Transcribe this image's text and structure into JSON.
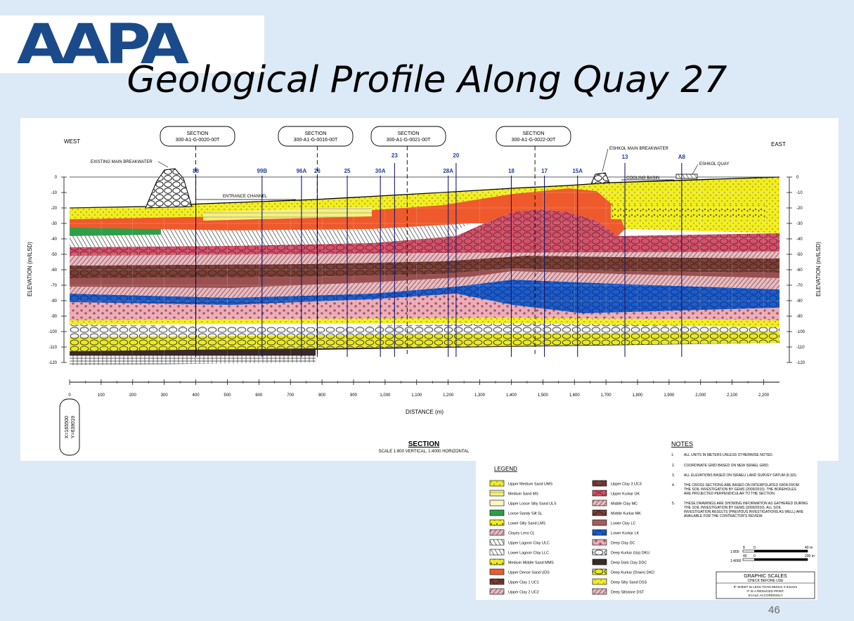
{
  "logo": {
    "text": "AAPA"
  },
  "slide": {
    "title": "Geological Profile Along Quay 27",
    "page_number": "46"
  },
  "profile": {
    "west_label": "WEST",
    "east_label": "EAST",
    "y_axis_label": "ELEVATION (m/ILSD)",
    "x_axis_label": "DISTANCE (m)",
    "elevation_ticks": [
      "0",
      "-10",
      "-20",
      "-30",
      "-40",
      "-50",
      "-60",
      "-70",
      "-80",
      "-90",
      "-100",
      "-110",
      "-120"
    ],
    "distance_ticks": [
      "0",
      "100",
      "200",
      "300",
      "400",
      "500",
      "600",
      "700",
      "800",
      "900",
      "1,000",
      "1,100",
      "1,200",
      "1,300",
      "1,400",
      "1,500",
      "1,600",
      "1,700",
      "1,800",
      "1,900",
      "2,000",
      "2,100",
      "2,200"
    ],
    "sections": [
      {
        "line1": "SECTION",
        "line2": "300-A1-G-0020-00T"
      },
      {
        "line1": "SECTION",
        "line2": "300-A1-G-0016-00T"
      },
      {
        "line1": "SECTION",
        "line2": "300-A1-G-0021-00T"
      },
      {
        "line1": "SECTION",
        "line2": "300-A1-G-0022-00T"
      }
    ],
    "boreholes": [
      {
        "label": "88",
        "d": 400
      },
      {
        "label": "99B",
        "d": 610
      },
      {
        "label": "96A",
        "d": 735
      },
      {
        "label": "26",
        "d": 785
      },
      {
        "label": "25",
        "d": 880
      },
      {
        "label": "30A",
        "d": 985
      },
      {
        "label": "23",
        "d": 1030
      },
      {
        "label": "28A",
        "d": 1200
      },
      {
        "label": "20",
        "d": 1225
      },
      {
        "label": "18",
        "d": 1400
      },
      {
        "label": "17",
        "d": 1505
      },
      {
        "label": "15A",
        "d": 1610
      },
      {
        "label": "13",
        "d": 1760
      },
      {
        "label": "A8",
        "d": 1940
      }
    ],
    "annotations": {
      "existing_breakwater": "EXISTING MAIN BREAKWATER",
      "eshkol_breakwater": "ESHKOL MAIN BREAKWATER",
      "eshkol_quay": "ESHKOL QUAY",
      "entrance_channel": "ENTRANCE CHANNEL",
      "cooling_basin": "COOLING BASIN"
    },
    "coord_x": "X=165500",
    "coord_y": "Y=639019",
    "section_title": "SECTION",
    "section_scale": "SCALE 1:800 VERTICAL, 1:4000 HORIZONTAL"
  },
  "notes": {
    "title": "NOTES",
    "items": [
      {
        "num": "1.",
        "lines": [
          "ALL UNITS IN METERS UNLESS OTHERWISE NOTED."
        ]
      },
      {
        "num": "2.",
        "lines": [
          "COORDINATE GRID BASED ON NEW ISRAEL GRID."
        ]
      },
      {
        "num": "3.",
        "lines": [
          "ALL ELEVATIONS BASED ON ISRAELI LAND SURVEY DATUM (ILSD)."
        ]
      },
      {
        "num": "4.",
        "lines": [
          "THE CROSS SECTIONS ARE BASED ON INTERPOLATED DATA FROM",
          "THE SOIL INVESTIGATION BY GEMS (2009/2010). THE BOREHOLES",
          "ARE PROJECTED PERPENDICULAR TO THE SECTION."
        ]
      },
      {
        "num": "5.",
        "lines": [
          "THESE DRAWINGS ARE SHOWING INFORMATION AS GATHERED DURING",
          "THE SOIL INVESTIGATION BY GEMS (2009/2010). ALL SOIL",
          "INVESTIGATION RESULTS (PREVIOUS INVESTIGATIONS AS WELL) ARE",
          "AVAILABLE FOR THE CONTRACTOR'S REVIEW."
        ]
      }
    ]
  },
  "legend": {
    "title": "LEGEND",
    "items": [
      {
        "label": "Upper Medium Sand UMS",
        "color": "#f2ee1e"
      },
      {
        "label": "Medium Sand MS",
        "color": "#f2ee1e"
      },
      {
        "label": "Upper Loose Silty Sand ULS",
        "color": "#fbf6c4"
      },
      {
        "label": "Loose Sandy Silt SL",
        "color": "#2e9e4a"
      },
      {
        "label": "Lower Silty Sand LMS",
        "color": "#e7e52a"
      },
      {
        "label": "Clayey Lens CL",
        "color": "#e8b9c0"
      },
      {
        "label": "Upper Lagoon Clay ULC",
        "color": "#777777"
      },
      {
        "label": "Lower Lagoon Clay LLC",
        "color": "#555555"
      },
      {
        "label": "Medium Middle Sand MMS",
        "color": "#f2ee1e"
      },
      {
        "label": "Upper Dense Sand UDS",
        "color": "#ef5a2c"
      },
      {
        "label": "Upper Clay 1 UC1",
        "color": "#9c6a6a"
      },
      {
        "label": "Upper Clay 2 UC2",
        "color": "#b07c7c"
      },
      {
        "label": "Upper Clay 3 UC3",
        "color": "#7a3f36"
      },
      {
        "label": "Upper Kurkar UK",
        "color": "#d4516a"
      },
      {
        "label": "Middle Clay MC",
        "color": "#c9a5a5"
      },
      {
        "label": "Middle Kurkar MK",
        "color": "#8c3a3a"
      },
      {
        "label": "Lower Clay LC",
        "color": "#a65c5c"
      },
      {
        "label": "Lower Kurkar LK",
        "color": "#1d5ccc"
      },
      {
        "label": "Deep Clay DC",
        "color": "#f1a9b5"
      },
      {
        "label": "Deep Kurkar (Up) DKU",
        "color": "#eeeeee"
      },
      {
        "label": "Deep Dark Clay DDC",
        "color": "#3a2a2a"
      },
      {
        "label": "Deep Kurkar (Down) DKD",
        "color": "#eaea20"
      },
      {
        "label": "Deep Silty Sand DSS",
        "color": "#fbf6c4"
      },
      {
        "label": "Deep Siltstone DST",
        "color": "#6d3d3d"
      }
    ]
  },
  "scales": {
    "v_scale": "1:800",
    "h_scale": "1:4000",
    "v_left": "8",
    "v_mid": "0",
    "v_right": "40 m",
    "h_left": "40",
    "h_mid": "0",
    "h_right": "200 m",
    "graphic_scales_title": "GRAPHIC SCALES",
    "check_before_use": "CHECK BEFORE USE",
    "warning": [
      "IF SHEET IS LESS THAN 594mm X 841mm",
      "IT IS A REDUCED PRINT.",
      "SCALE ACCORDINGLY"
    ]
  },
  "colors": {
    "ums": "#f2ee1e",
    "uds": "#ef5a2c",
    "kurkar": "#d4516a",
    "blue": "#1d5ccc",
    "pink": "#f1a9b5",
    "brown": "#7a3f36",
    "green": "#2e9e4a"
  }
}
